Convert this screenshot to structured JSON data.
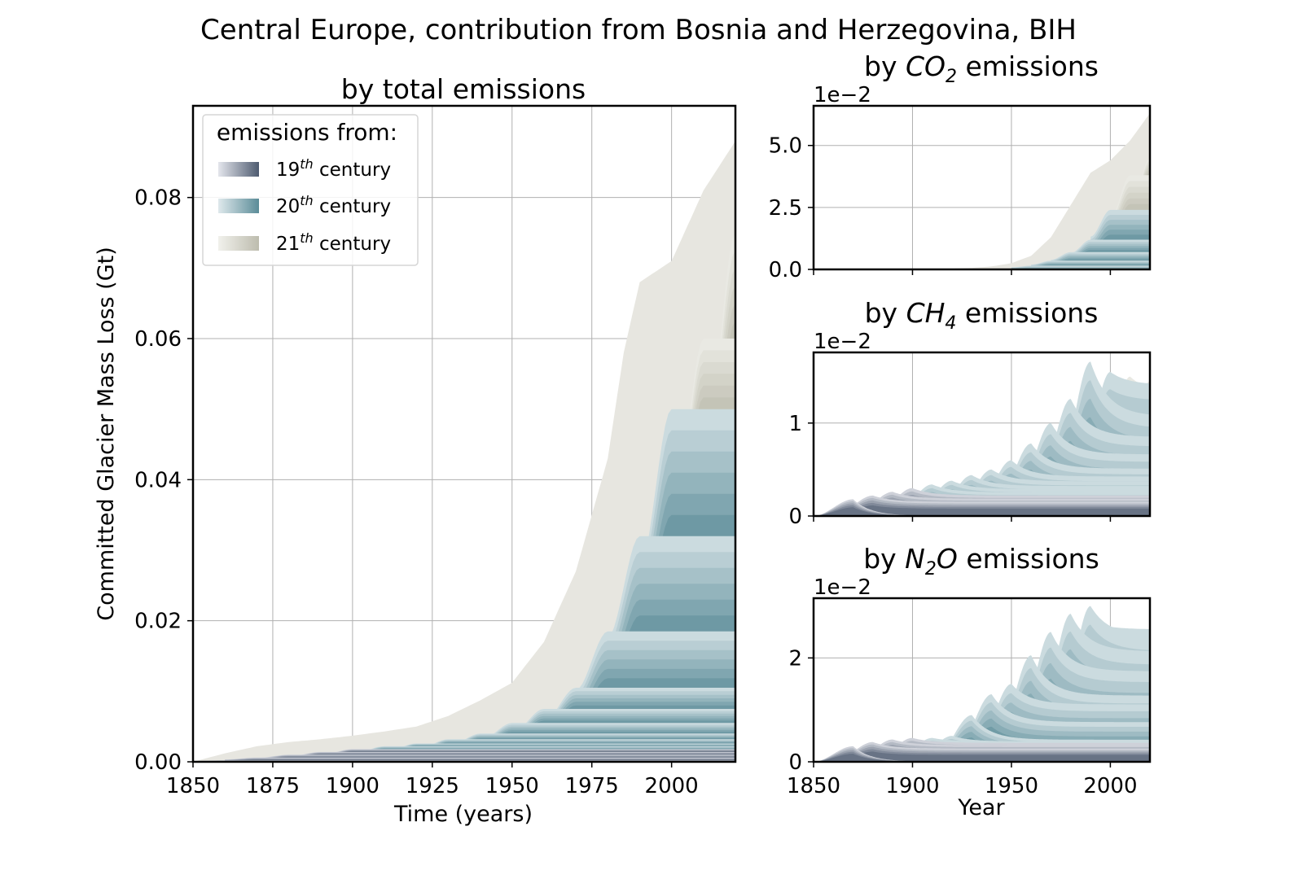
{
  "title": "Central Europe, contribution from Bosnia and Herzegovina, BIH",
  "colors": {
    "c19_light": "#e4e6ec",
    "c19_dark": "#4e5b70",
    "c20_light": "#dfe9ec",
    "c20_dark": "#5b8c98",
    "c21_light": "#f1f1ec",
    "c21_dark": "#bdbcae"
  },
  "legend": {
    "title": "emissions from:",
    "entries": [
      {
        "num": "19",
        "sup": "th",
        "word": "century",
        "key": "19"
      },
      {
        "num": "20",
        "sup": "th",
        "word": "century",
        "key": "20"
      },
      {
        "num": "21",
        "sup": "th",
        "word": "century",
        "key": "21"
      }
    ]
  },
  "chart_data": [
    {
      "id": "total",
      "type": "area",
      "stacked": true,
      "title": "by total emissions",
      "xlabel": "Time (years)",
      "ylabel": "Committed Glacier Mass Loss (Gt)",
      "xlim": [
        1850,
        2020
      ],
      "ylim": [
        0,
        0.093
      ],
      "xticks": [
        1850,
        1875,
        1900,
        1925,
        1950,
        1975,
        2000
      ],
      "xtick_labels": [
        "1850",
        "1875",
        "1900",
        "1925",
        "1950",
        "1975",
        "2000"
      ],
      "yticks": [
        0,
        0.02,
        0.04,
        0.06,
        0.08
      ],
      "ytick_labels": [
        "0.00",
        "0.02",
        "0.04",
        "0.06",
        "0.08"
      ],
      "grid": true,
      "legend_position": "upper-left",
      "envelope_x": [
        1850,
        1860,
        1870,
        1880,
        1890,
        1900,
        1910,
        1920,
        1930,
        1940,
        1950,
        1960,
        1970,
        1980,
        1985,
        1990,
        2000,
        2010,
        2020
      ],
      "envelope_y": [
        0.0,
        0.0012,
        0.0022,
        0.0028,
        0.0032,
        0.0037,
        0.0043,
        0.005,
        0.0065,
        0.0087,
        0.0112,
        0.017,
        0.027,
        0.043,
        0.058,
        0.068,
        0.071,
        0.081,
        0.088
      ],
      "decade_tops": [
        {
          "decade": 1850,
          "value": 0.0002
        },
        {
          "decade": 1860,
          "value": 0.0006
        },
        {
          "decade": 1870,
          "value": 0.001
        },
        {
          "decade": 1880,
          "value": 0.0014
        },
        {
          "decade": 1890,
          "value": 0.0018
        },
        {
          "decade": 1900,
          "value": 0.0022
        },
        {
          "decade": 1910,
          "value": 0.0026
        },
        {
          "decade": 1920,
          "value": 0.0032
        },
        {
          "decade": 1930,
          "value": 0.004
        },
        {
          "decade": 1940,
          "value": 0.0055
        },
        {
          "decade": 1950,
          "value": 0.0075
        },
        {
          "decade": 1960,
          "value": 0.0105
        },
        {
          "decade": 1970,
          "value": 0.0185
        },
        {
          "decade": 1980,
          "value": 0.032
        },
        {
          "decade": 1990,
          "value": 0.05
        },
        {
          "decade": 2000,
          "value": 0.06
        },
        {
          "decade": 2010,
          "value": 0.075
        },
        {
          "decade": 2020,
          "value": 0.088
        }
      ]
    },
    {
      "id": "co2",
      "type": "area",
      "stacked": true,
      "title_prefix": "by ",
      "title_species": "CO",
      "title_sub": "2",
      "title_suffix": " emissions",
      "scale_label": "1e−2",
      "xlabel": "",
      "xlim": [
        1850,
        2020
      ],
      "ylim": [
        0,
        6.6
      ],
      "xticks": [
        1850,
        1900,
        1950,
        2000
      ],
      "yticks": [
        0,
        2.5,
        5.0
      ],
      "ytick_labels": [
        "0.0",
        "2.5",
        "5.0"
      ],
      "grid": true,
      "envelope_x": [
        1850,
        1900,
        1920,
        1930,
        1940,
        1950,
        1960,
        1970,
        1980,
        1990,
        2000,
        2010,
        2020
      ],
      "envelope_y": [
        0,
        0.01,
        0.03,
        0.06,
        0.12,
        0.25,
        0.55,
        1.3,
        2.6,
        3.9,
        4.4,
        5.2,
        6.3
      ],
      "decade_tops": [
        {
          "decade": 1950,
          "value": 0.15
        },
        {
          "decade": 1960,
          "value": 0.35
        },
        {
          "decade": 1970,
          "value": 0.7
        },
        {
          "decade": 1980,
          "value": 1.2
        },
        {
          "decade": 1990,
          "value": 2.4
        },
        {
          "decade": 2000,
          "value": 3.8
        },
        {
          "decade": 2010,
          "value": 4.5
        },
        {
          "decade": 2020,
          "value": 6.3
        }
      ]
    },
    {
      "id": "ch4",
      "type": "area",
      "stacked": true,
      "title_prefix": "by ",
      "title_species": "CH",
      "title_sub": "4",
      "title_suffix": " emissions",
      "scale_label": "1e−2",
      "xlabel": "",
      "xlim": [
        1850,
        2020
      ],
      "ylim": [
        0,
        1.76
      ],
      "xticks": [
        1850,
        1900,
        1950,
        2000
      ],
      "yticks": [
        0,
        1
      ],
      "ytick_labels": [
        "0",
        "1"
      ],
      "grid": true,
      "peaks": [
        {
          "x": 1870,
          "y": 0.18
        },
        {
          "x": 1880,
          "y": 0.22
        },
        {
          "x": 1890,
          "y": 0.26
        },
        {
          "x": 1900,
          "y": 0.3
        },
        {
          "x": 1910,
          "y": 0.34
        },
        {
          "x": 1920,
          "y": 0.38
        },
        {
          "x": 1930,
          "y": 0.44
        },
        {
          "x": 1940,
          "y": 0.5
        },
        {
          "x": 1950,
          "y": 0.6
        },
        {
          "x": 1960,
          "y": 0.78
        },
        {
          "x": 1970,
          "y": 1.0
        },
        {
          "x": 1980,
          "y": 1.26
        },
        {
          "x": 1990,
          "y": 1.66
        },
        {
          "x": 2000,
          "y": 1.55
        },
        {
          "x": 2010,
          "y": 1.5
        },
        {
          "x": 2020,
          "y": 1.45
        }
      ]
    },
    {
      "id": "n2o",
      "type": "area",
      "stacked": true,
      "title_prefix": "by ",
      "title_species": "N",
      "title_sub": "2",
      "title_species2": "O",
      "title_suffix": " emissions",
      "scale_label": "1e−2",
      "xlabel": "Year",
      "xlim": [
        1850,
        2020
      ],
      "ylim": [
        0,
        3.15
      ],
      "xticks": [
        1850,
        1900,
        1950,
        2000
      ],
      "xtick_labels": [
        "1850",
        "1900",
        "1950",
        "2000"
      ],
      "yticks": [
        0,
        2
      ],
      "ytick_labels": [
        "0",
        "2"
      ],
      "grid": true,
      "peaks": [
        {
          "x": 1870,
          "y": 0.3
        },
        {
          "x": 1880,
          "y": 0.38
        },
        {
          "x": 1890,
          "y": 0.43
        },
        {
          "x": 1900,
          "y": 0.46
        },
        {
          "x": 1910,
          "y": 0.46
        },
        {
          "x": 1920,
          "y": 0.5
        },
        {
          "x": 1930,
          "y": 0.9
        },
        {
          "x": 1940,
          "y": 1.3
        },
        {
          "x": 1950,
          "y": 1.5
        },
        {
          "x": 1960,
          "y": 2.05
        },
        {
          "x": 1970,
          "y": 2.5
        },
        {
          "x": 1980,
          "y": 2.85
        },
        {
          "x": 1990,
          "y": 3.0
        },
        {
          "x": 2000,
          "y": 2.6
        },
        {
          "x": 2010,
          "y": 2.35
        },
        {
          "x": 2020,
          "y": 2.2
        }
      ]
    }
  ]
}
